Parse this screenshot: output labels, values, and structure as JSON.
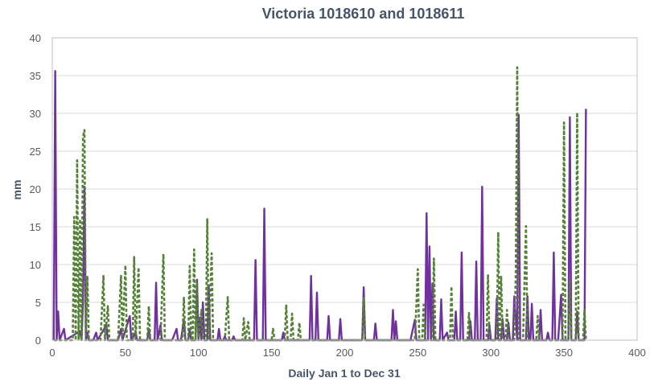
{
  "chart_data": {
    "type": "line",
    "title": "Victoria 1018610 and 1018611",
    "xlabel": "Daily Jan 1 to Dec 31",
    "ylabel": "mm",
    "xlim": [
      0,
      400
    ],
    "ylim": [
      0,
      40
    ],
    "xticks": [
      0,
      50,
      100,
      150,
      200,
      250,
      300,
      350,
      400
    ],
    "yticks": [
      0,
      5,
      10,
      15,
      20,
      25,
      30,
      35,
      40
    ],
    "grid": "horizontal",
    "legend": "none",
    "series": [
      {
        "style": "solid",
        "color": "#7030a0",
        "points": [
          [
            1,
            0
          ],
          [
            2,
            35.6
          ],
          [
            3,
            0
          ],
          [
            4,
            3.8
          ],
          [
            5,
            0
          ],
          [
            8,
            1.5
          ],
          [
            9,
            0
          ],
          [
            19,
            1.2
          ],
          [
            20,
            0
          ],
          [
            21,
            5
          ],
          [
            22,
            20.3
          ],
          [
            23,
            0
          ],
          [
            24,
            1
          ],
          [
            25,
            0
          ],
          [
            28,
            0
          ],
          [
            30,
            1
          ],
          [
            31,
            0
          ],
          [
            37,
            2
          ],
          [
            38,
            0
          ],
          [
            45,
            0
          ],
          [
            47,
            1.5
          ],
          [
            48,
            0
          ],
          [
            53,
            3.2
          ],
          [
            54,
            0
          ],
          [
            57,
            1
          ],
          [
            58,
            0
          ],
          [
            65,
            0
          ],
          [
            66,
            1.5
          ],
          [
            67,
            0
          ],
          [
            70,
            0
          ],
          [
            71,
            7.6
          ],
          [
            72,
            0
          ],
          [
            74,
            2
          ],
          [
            75,
            0
          ],
          [
            82,
            0
          ],
          [
            85,
            1.5
          ],
          [
            86,
            0
          ],
          [
            88,
            0
          ],
          [
            90,
            2.7
          ],
          [
            91,
            0
          ],
          [
            93,
            0
          ],
          [
            94,
            1.5
          ],
          [
            95,
            0
          ],
          [
            98,
            0
          ],
          [
            99,
            8
          ],
          [
            100,
            0
          ],
          [
            101,
            3
          ],
          [
            102,
            0
          ],
          [
            103,
            5
          ],
          [
            104,
            0
          ],
          [
            106,
            0
          ],
          [
            107,
            7.2
          ],
          [
            108,
            0
          ],
          [
            113,
            0
          ],
          [
            114,
            1.5
          ],
          [
            115,
            0
          ],
          [
            117,
            0
          ],
          [
            118,
            0.5
          ],
          [
            119,
            0
          ],
          [
            123,
            0
          ],
          [
            124,
            0.5
          ],
          [
            125,
            0
          ],
          [
            138,
            0
          ],
          [
            139,
            10.6
          ],
          [
            140,
            0
          ],
          [
            144,
            0
          ],
          [
            145,
            17.4
          ],
          [
            146,
            0
          ],
          [
            157,
            0
          ],
          [
            158,
            1
          ],
          [
            159,
            0
          ],
          [
            176,
            0
          ],
          [
            177,
            8.5
          ],
          [
            178,
            0
          ],
          [
            180,
            0
          ],
          [
            181,
            6.3
          ],
          [
            182,
            0
          ],
          [
            188,
            0
          ],
          [
            189,
            3.2
          ],
          [
            190,
            0
          ],
          [
            196,
            0
          ],
          [
            197,
            2.8
          ],
          [
            198,
            0
          ],
          [
            212,
            0
          ],
          [
            213,
            7
          ],
          [
            214,
            0
          ],
          [
            220,
            0
          ],
          [
            221,
            2.2
          ],
          [
            222,
            0
          ],
          [
            232,
            0
          ],
          [
            233,
            4
          ],
          [
            234,
            0
          ],
          [
            235,
            2.5
          ],
          [
            236,
            0
          ],
          [
            245,
            0
          ],
          [
            248,
            2.7
          ],
          [
            249,
            0
          ],
          [
            255,
            0
          ],
          [
            256,
            16.8
          ],
          [
            257,
            0
          ],
          [
            258,
            12.4
          ],
          [
            259,
            0
          ],
          [
            260,
            7.5
          ],
          [
            261,
            0
          ],
          [
            265,
            0
          ],
          [
            266,
            5.4
          ],
          [
            267,
            0
          ],
          [
            270,
            1
          ],
          [
            271,
            0
          ],
          [
            275,
            0
          ],
          [
            276,
            3.8
          ],
          [
            277,
            0
          ],
          [
            279,
            0
          ],
          [
            280,
            11.6
          ],
          [
            281,
            0
          ],
          [
            285,
            0
          ],
          [
            286,
            2.5
          ],
          [
            287,
            0
          ],
          [
            289,
            0
          ],
          [
            290,
            10.4
          ],
          [
            291,
            0
          ],
          [
            293,
            0
          ],
          [
            294,
            20.3
          ],
          [
            295,
            0
          ],
          [
            298,
            0
          ],
          [
            299,
            2
          ],
          [
            300,
            0
          ],
          [
            303,
            0
          ],
          [
            304,
            5.5
          ],
          [
            305,
            0
          ],
          [
            307,
            0
          ],
          [
            308,
            2.8
          ],
          [
            309,
            0
          ],
          [
            311,
            0
          ],
          [
            312,
            2.3
          ],
          [
            313,
            0
          ],
          [
            315,
            0
          ],
          [
            316,
            5.8
          ],
          [
            317,
            3
          ],
          [
            318,
            0
          ],
          [
            319,
            29.8
          ],
          [
            320,
            0
          ],
          [
            324,
            0
          ],
          [
            325,
            5.8
          ],
          [
            326,
            0
          ],
          [
            327,
            0
          ],
          [
            328,
            4.8
          ],
          [
            329,
            0
          ],
          [
            333,
            0
          ],
          [
            334,
            4
          ],
          [
            335,
            0
          ],
          [
            338,
            0
          ],
          [
            339,
            1
          ],
          [
            340,
            0
          ],
          [
            342,
            0
          ],
          [
            343,
            11.6
          ],
          [
            344,
            0
          ],
          [
            346,
            0
          ],
          [
            348,
            6
          ],
          [
            349,
            0
          ],
          [
            353,
            0
          ],
          [
            354,
            29.5
          ],
          [
            355,
            0
          ],
          [
            358,
            0
          ],
          [
            359,
            3.8
          ],
          [
            360,
            0
          ],
          [
            364,
            0
          ],
          [
            365,
            30.6
          ]
        ]
      },
      {
        "style": "dashed",
        "color": "#538135",
        "points": [
          [
            1,
            0
          ],
          [
            14,
            0
          ],
          [
            15,
            16.3
          ],
          [
            16,
            0
          ],
          [
            17,
            23.8
          ],
          [
            18,
            0
          ],
          [
            19,
            16
          ],
          [
            20,
            0
          ],
          [
            21,
            26.9
          ],
          [
            22,
            27.8
          ],
          [
            23,
            0
          ],
          [
            24,
            8.5
          ],
          [
            25,
            0
          ],
          [
            33,
            0
          ],
          [
            35,
            8.6
          ],
          [
            36,
            0
          ],
          [
            38,
            4.5
          ],
          [
            39,
            0
          ],
          [
            45,
            0
          ],
          [
            47,
            8.5
          ],
          [
            48,
            0
          ],
          [
            50,
            9.9
          ],
          [
            51,
            0
          ],
          [
            55,
            0
          ],
          [
            56,
            11
          ],
          [
            57,
            0
          ],
          [
            59,
            9.6
          ],
          [
            60,
            0
          ],
          [
            65,
            0
          ],
          [
            66,
            4.5
          ],
          [
            67,
            0
          ],
          [
            74,
            0
          ],
          [
            76,
            11.4
          ],
          [
            77,
            0
          ],
          [
            89,
            0
          ],
          [
            90,
            5.6
          ],
          [
            91,
            0
          ],
          [
            93,
            0
          ],
          [
            94,
            9.8
          ],
          [
            95,
            0
          ],
          [
            96,
            0
          ],
          [
            97,
            12
          ],
          [
            98,
            0
          ],
          [
            99,
            7.5
          ],
          [
            100,
            0
          ],
          [
            102,
            4
          ],
          [
            103,
            0
          ],
          [
            105,
            0
          ],
          [
            106,
            16
          ],
          [
            107,
            0
          ],
          [
            109,
            11.5
          ],
          [
            110,
            0
          ],
          [
            118,
            0
          ],
          [
            120,
            5.7
          ],
          [
            121,
            0
          ],
          [
            130,
            0
          ],
          [
            131,
            2.9
          ],
          [
            132,
            0
          ],
          [
            134,
            2.4
          ],
          [
            135,
            0
          ],
          [
            150,
            0
          ],
          [
            151,
            1.5
          ],
          [
            152,
            0
          ],
          [
            159,
            0
          ],
          [
            160,
            4.7
          ],
          [
            161,
            0
          ],
          [
            163,
            0
          ],
          [
            164,
            3.5
          ],
          [
            165,
            0
          ],
          [
            168,
            0
          ],
          [
            169,
            2.3
          ],
          [
            170,
            0
          ],
          [
            212,
            0
          ],
          [
            213,
            5.7
          ],
          [
            214,
            0
          ],
          [
            248,
            0
          ],
          [
            249,
            4.5
          ],
          [
            250,
            9.4
          ],
          [
            251,
            0
          ],
          [
            253,
            0
          ],
          [
            254,
            4.7
          ],
          [
            255,
            0
          ],
          [
            260,
            0
          ],
          [
            261,
            10.8
          ],
          [
            262,
            0
          ],
          [
            272,
            0
          ],
          [
            273,
            7.1
          ],
          [
            274,
            0
          ],
          [
            284,
            0
          ],
          [
            285,
            3.6
          ],
          [
            286,
            0
          ],
          [
            297,
            0
          ],
          [
            298,
            8.7
          ],
          [
            299,
            0
          ],
          [
            304,
            0
          ],
          [
            305,
            14.3
          ],
          [
            306,
            0
          ],
          [
            307,
            8.5
          ],
          [
            308,
            0
          ],
          [
            310,
            0
          ],
          [
            311,
            4
          ],
          [
            312,
            0
          ],
          [
            316,
            0
          ],
          [
            317,
            8.7
          ],
          [
            318,
            36.1
          ],
          [
            319,
            0
          ],
          [
            322,
            0
          ],
          [
            323,
            8
          ],
          [
            324,
            15.1
          ],
          [
            325,
            0
          ],
          [
            331,
            0
          ],
          [
            332,
            3.2
          ],
          [
            333,
            0
          ],
          [
            349,
            0
          ],
          [
            350,
            28.8
          ],
          [
            351,
            0
          ],
          [
            353,
            0
          ],
          [
            354,
            8
          ],
          [
            355,
            0
          ],
          [
            358,
            0
          ],
          [
            359,
            30.1
          ],
          [
            360,
            0
          ],
          [
            363,
            0
          ],
          [
            364,
            4
          ],
          [
            365,
            0
          ]
        ]
      }
    ]
  }
}
